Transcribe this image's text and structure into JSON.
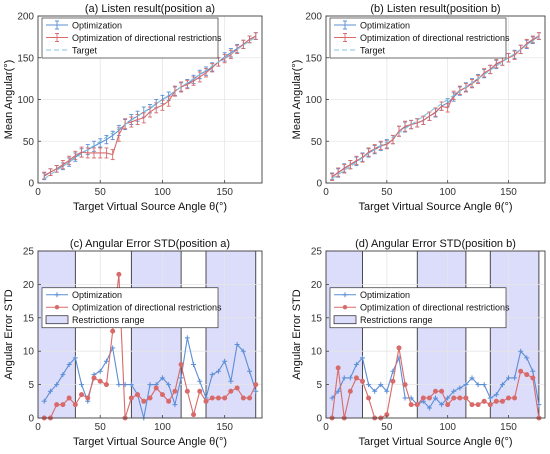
{
  "colors": {
    "optimization": "#5b8fd6",
    "restricted": "#d86a6a",
    "target": "#7fc4de",
    "restriction_fill": "#dcdcfb",
    "axis": "#404040",
    "grid": "#e6e6e6"
  },
  "chart_data": [
    {
      "type": "line",
      "title": "(a) Listen result(position a)",
      "xlabel": "Target Virtual Source Angle θ(°)",
      "ylabel": "Mean Angular(°)",
      "xlim": [
        0,
        180
      ],
      "ylim": [
        0,
        200
      ],
      "xticks": [
        "0",
        "50",
        "100",
        "150"
      ],
      "yticks": [
        "0",
        "50",
        "100",
        "150",
        "200"
      ],
      "grid": true,
      "legend_position": "top-left",
      "x": [
        5,
        10,
        15,
        20,
        25,
        30,
        35,
        40,
        45,
        50,
        55,
        60,
        65,
        70,
        75,
        80,
        85,
        90,
        95,
        100,
        105,
        110,
        115,
        120,
        125,
        130,
        135,
        140,
        145,
        150,
        155,
        160,
        165,
        170,
        175
      ],
      "series": [
        {
          "name": "Optimization",
          "kind": "errorbar",
          "values": [
            8,
            13,
            17,
            20,
            25,
            31,
            36,
            40,
            44,
            48,
            52,
            57,
            63,
            70,
            76,
            80,
            85,
            89,
            95,
            100,
            104,
            110,
            115,
            119,
            124,
            130,
            134,
            139,
            145,
            151,
            156,
            161,
            166,
            172,
            176
          ],
          "errors": [
            4,
            4,
            4,
            4,
            5,
            5,
            5,
            6,
            6,
            5,
            5,
            5,
            6,
            6,
            6,
            6,
            6,
            5,
            5,
            5,
            5,
            5,
            5,
            5,
            5,
            5,
            5,
            5,
            5,
            5,
            5,
            5,
            5,
            4,
            4
          ]
        },
        {
          "name": "Optimization of directional restrictions",
          "kind": "errorbar",
          "values": [
            9,
            13,
            17,
            22,
            27,
            33,
            37,
            36,
            36,
            36,
            36,
            34,
            58,
            71,
            73,
            76,
            78,
            85,
            90,
            93,
            98,
            110,
            115,
            118,
            122,
            127,
            132,
            138,
            145,
            149,
            154,
            160,
            166,
            172,
            176
          ],
          "errors": [
            4,
            4,
            4,
            5,
            5,
            5,
            6,
            6,
            6,
            6,
            6,
            6,
            8,
            6,
            6,
            6,
            6,
            6,
            6,
            6,
            6,
            6,
            6,
            5,
            5,
            6,
            5,
            5,
            5,
            5,
            5,
            5,
            5,
            4,
            4
          ]
        },
        {
          "name": "Target",
          "kind": "dashed",
          "values": [
            5,
            10,
            15,
            20,
            25,
            30,
            35,
            40,
            45,
            50,
            55,
            60,
            65,
            70,
            75,
            80,
            85,
            90,
            95,
            100,
            105,
            110,
            115,
            120,
            125,
            130,
            135,
            140,
            145,
            150,
            155,
            160,
            165,
            170,
            175
          ]
        }
      ],
      "legend": [
        "Optimization",
        "Optimization of directional restrictions",
        "Target"
      ]
    },
    {
      "type": "line",
      "title": "(b) Listen result(position b)",
      "xlabel": "Target Virtual Source Angle θ(°)",
      "ylabel": "Mean Angular(°)",
      "xlim": [
        0,
        180
      ],
      "ylim": [
        0,
        200
      ],
      "xticks": [
        "0",
        "50",
        "100",
        "150"
      ],
      "yticks": [
        "0",
        "50",
        "100",
        "150",
        "200"
      ],
      "grid": true,
      "legend_position": "top-left",
      "x": [
        5,
        10,
        15,
        20,
        25,
        30,
        35,
        40,
        45,
        50,
        55,
        60,
        65,
        70,
        75,
        80,
        85,
        90,
        95,
        100,
        105,
        110,
        115,
        120,
        125,
        130,
        135,
        140,
        145,
        150,
        155,
        160,
        165,
        170,
        175
      ],
      "series": [
        {
          "name": "Optimization",
          "kind": "errorbar",
          "values": [
            8,
            12,
            18,
            22,
            26,
            31,
            36,
            40,
            44,
            47,
            52,
            62,
            67,
            70,
            72,
            75,
            80,
            84,
            92,
            96,
            103,
            110,
            115,
            120,
            125,
            131,
            136,
            142,
            146,
            150,
            154,
            160,
            166,
            171,
            176
          ],
          "errors": [
            4,
            5,
            5,
            5,
            5,
            5,
            5,
            5,
            5,
            5,
            5,
            6,
            6,
            5,
            5,
            5,
            5,
            5,
            5,
            5,
            5,
            5,
            5,
            5,
            5,
            5,
            5,
            5,
            5,
            5,
            5,
            5,
            5,
            4,
            4
          ]
        },
        {
          "name": "Optimization of directional restrictions",
          "kind": "errorbar",
          "values": [
            7,
            13,
            17,
            22,
            27,
            30,
            37,
            41,
            45,
            46,
            52,
            62,
            68,
            70,
            72,
            75,
            80,
            85,
            92,
            90,
            105,
            111,
            114,
            119,
            124,
            132,
            136,
            143,
            146,
            150,
            153,
            160,
            167,
            172,
            176
          ],
          "errors": [
            4,
            5,
            5,
            5,
            5,
            5,
            5,
            5,
            5,
            5,
            5,
            6,
            6,
            5,
            5,
            5,
            5,
            5,
            5,
            5,
            5,
            5,
            5,
            5,
            5,
            5,
            5,
            5,
            5,
            5,
            5,
            5,
            5,
            4,
            4
          ]
        },
        {
          "name": "Target",
          "kind": "dashed",
          "values": [
            5,
            10,
            15,
            20,
            25,
            30,
            35,
            40,
            45,
            50,
            55,
            60,
            65,
            70,
            75,
            80,
            85,
            90,
            95,
            100,
            105,
            110,
            115,
            120,
            125,
            130,
            135,
            140,
            145,
            150,
            155,
            160,
            165,
            170,
            175
          ]
        }
      ],
      "legend": [
        "Optimization",
        "Optimization of directional restrictions",
        "Target"
      ]
    },
    {
      "type": "line",
      "title": "(c) Angular Error STD(position a)",
      "xlabel": "Target Virtual Source Angle θ(°)",
      "ylabel": "Angular Error STD",
      "xlim": [
        0,
        180
      ],
      "ylim": [
        0,
        25
      ],
      "xticks": [
        "0",
        "50",
        "100",
        "150"
      ],
      "yticks": [
        "0",
        "5",
        "10",
        "15",
        "20",
        "25"
      ],
      "grid": true,
      "legend_position": "top-left",
      "restriction_ranges": [
        [
          0,
          30
        ],
        [
          75,
          115
        ],
        [
          135,
          175
        ]
      ],
      "x": [
        5,
        10,
        15,
        20,
        25,
        30,
        35,
        40,
        45,
        50,
        55,
        60,
        65,
        70,
        75,
        80,
        85,
        90,
        95,
        100,
        105,
        110,
        115,
        120,
        125,
        130,
        135,
        140,
        145,
        150,
        155,
        160,
        165,
        170,
        175
      ],
      "series": [
        {
          "name": "Optimization",
          "marker": "plus",
          "values": [
            2.5,
            4,
            5,
            6.5,
            8,
            9,
            5,
            2.5,
            6.5,
            7,
            8.5,
            10.5,
            5,
            5,
            5,
            3.5,
            0,
            5,
            5,
            6,
            5,
            2,
            6,
            12,
            8,
            5.5,
            3,
            6.5,
            7,
            8.5,
            5.5,
            11,
            10,
            7,
            4
          ]
        },
        {
          "name": "Optimization of directional restrictions",
          "marker": "star",
          "values": [
            0,
            0,
            2,
            2,
            3,
            2,
            3.5,
            3,
            6,
            5.5,
            5,
            13,
            21.5,
            0,
            3,
            3.5,
            2.5,
            3,
            4.5,
            3.5,
            2.5,
            4,
            8,
            4,
            0.5,
            4,
            2.5,
            3,
            3,
            3,
            4,
            4.5,
            3,
            3,
            5
          ]
        }
      ],
      "legend": [
        "Optimization",
        "Optimization of directional restrictions",
        "Restrictions range"
      ]
    },
    {
      "type": "line",
      "title": "(d) Angular Error STD(position b)",
      "xlabel": "Target Virtual Source Angle θ(°)",
      "ylabel": "Angular Error STD",
      "xlim": [
        0,
        180
      ],
      "ylim": [
        0,
        25
      ],
      "xticks": [
        "0",
        "50",
        "100",
        "150"
      ],
      "yticks": [
        "0",
        "5",
        "10",
        "15",
        "20",
        "25"
      ],
      "grid": true,
      "legend_position": "top-left",
      "restriction_ranges": [
        [
          0,
          30
        ],
        [
          75,
          115
        ],
        [
          135,
          175
        ]
      ],
      "x": [
        5,
        10,
        15,
        20,
        25,
        30,
        35,
        40,
        45,
        50,
        55,
        60,
        65,
        70,
        75,
        80,
        85,
        90,
        95,
        100,
        105,
        110,
        115,
        120,
        125,
        130,
        135,
        140,
        145,
        150,
        155,
        160,
        165,
        170,
        175
      ],
      "series": [
        {
          "name": "Optimization",
          "marker": "plus",
          "values": [
            3,
            4,
            6,
            6,
            8,
            9,
            5,
            4,
            5,
            4,
            7,
            9,
            3,
            3,
            2,
            2.5,
            1.5,
            3,
            2,
            3,
            4,
            4.5,
            5,
            6,
            5,
            5,
            3,
            3.5,
            5,
            6,
            6,
            10,
            9,
            7,
            2
          ]
        },
        {
          "name": "Optimization of directional restrictions",
          "marker": "star",
          "values": [
            0,
            7.5,
            0,
            4,
            6,
            5.5,
            3,
            0,
            0,
            0.5,
            5.5,
            10.5,
            5,
            2,
            2,
            3,
            3,
            4,
            4,
            2,
            3,
            3,
            3,
            2,
            2,
            2.5,
            2,
            2.5,
            2.5,
            3,
            3,
            7,
            6.5,
            6,
            0
          ]
        }
      ],
      "legend": [
        "Optimization",
        "Optimization of directional restrictions",
        "Restrictions range"
      ]
    }
  ]
}
